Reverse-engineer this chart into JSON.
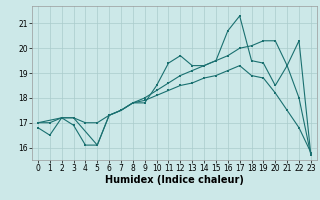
{
  "xlabel": "Humidex (Indice chaleur)",
  "bg_color": "#cce8e8",
  "grid_color": "#aacccc",
  "line_color": "#1a7070",
  "xlim": [
    -0.5,
    23.5
  ],
  "ylim": [
    15.5,
    21.7
  ],
  "yticks": [
    16,
    17,
    18,
    19,
    20,
    21
  ],
  "xticks": [
    0,
    1,
    2,
    3,
    4,
    5,
    6,
    7,
    8,
    9,
    10,
    11,
    12,
    13,
    14,
    15,
    16,
    17,
    18,
    19,
    20,
    21,
    22,
    23
  ],
  "line1_x": [
    0,
    1,
    2,
    3,
    4,
    5,
    6,
    7,
    8,
    9,
    10,
    11,
    12,
    13,
    14,
    15,
    16,
    17,
    18,
    19,
    20,
    21,
    22,
    23
  ],
  "line1_y": [
    16.8,
    16.5,
    17.2,
    16.9,
    16.1,
    16.1,
    17.3,
    17.5,
    17.8,
    17.8,
    18.5,
    19.4,
    19.7,
    19.3,
    19.3,
    19.5,
    20.7,
    21.3,
    19.5,
    19.4,
    18.5,
    19.3,
    20.3,
    15.7
  ],
  "line2_x": [
    0,
    1,
    2,
    3,
    4,
    5,
    6,
    7,
    8,
    9,
    10,
    11,
    12,
    13,
    14,
    15,
    16,
    17,
    18,
    19,
    20,
    21,
    22,
    23
  ],
  "line2_y": [
    17.0,
    17.0,
    17.2,
    17.2,
    17.0,
    17.0,
    17.3,
    17.5,
    17.8,
    17.9,
    18.1,
    18.3,
    18.5,
    18.6,
    18.8,
    18.9,
    19.1,
    19.3,
    18.9,
    18.8,
    18.2,
    17.5,
    16.8,
    15.8
  ],
  "line3_x": [
    0,
    2,
    3,
    5,
    6,
    7,
    8,
    9,
    10,
    11,
    12,
    13,
    14,
    15,
    16,
    17,
    18,
    19,
    20,
    21,
    22,
    23
  ],
  "line3_y": [
    17.0,
    17.2,
    17.2,
    16.1,
    17.3,
    17.5,
    17.8,
    18.0,
    18.3,
    18.6,
    18.9,
    19.1,
    19.3,
    19.5,
    19.7,
    20.0,
    20.1,
    20.3,
    20.3,
    19.3,
    18.0,
    15.7
  ],
  "tick_fontsize": 5.5,
  "xlabel_fontsize": 7,
  "marker_size": 2.0,
  "line_width": 0.8
}
